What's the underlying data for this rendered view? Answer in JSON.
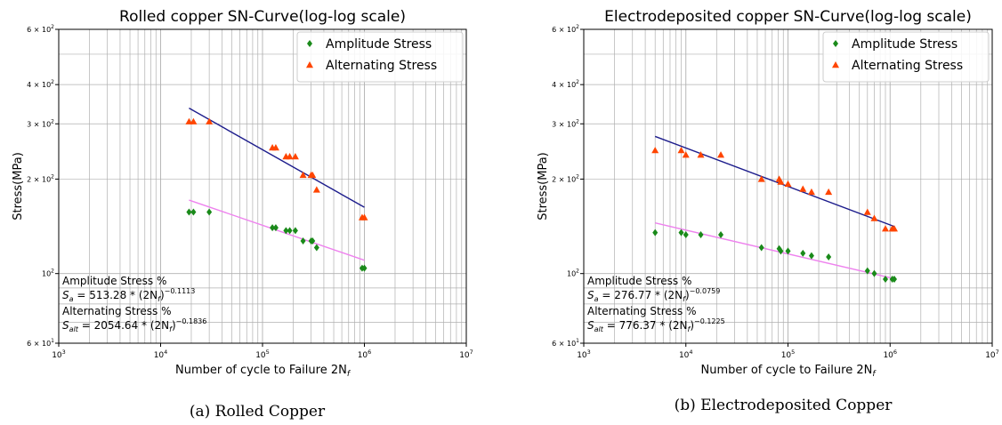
{
  "colors": {
    "amplitude_marker": "#1a8a1a",
    "alternating_marker": "#ff4500",
    "amplitude_fit": "#ee82ee",
    "alternating_fit": "#1c1c8c",
    "grid": "#b0b0b0",
    "axis": "#000000"
  },
  "chart_data": [
    {
      "type": "scatter",
      "title": "Rolled copper SN-Curve(log-log scale)",
      "xlabel": "Number of cycle to Failure 2N",
      "xlabel_sub": "f",
      "ylabel": "Stress(MPa)",
      "xscale": "log",
      "yscale": "log",
      "xlim": [
        1000,
        10000000
      ],
      "ylim": [
        60,
        600
      ],
      "grid": true,
      "legend_position": "top-right",
      "x_ticks": [
        {
          "value": 1000,
          "base": "10",
          "exp": "3"
        },
        {
          "value": 10000,
          "base": "10",
          "exp": "4"
        },
        {
          "value": 100000,
          "base": "10",
          "exp": "5"
        },
        {
          "value": 1000000,
          "base": "10",
          "exp": "6"
        },
        {
          "value": 10000000,
          "base": "10",
          "exp": "7"
        }
      ],
      "y_ticks": [
        {
          "value": 60,
          "mant": "6 × 10",
          "exp": "1",
          "major": false
        },
        {
          "value": 100,
          "mant": "10",
          "exp": "2",
          "major": true
        },
        {
          "value": 200,
          "mant": "2 × 10",
          "exp": "2",
          "major": false
        },
        {
          "value": 300,
          "mant": "3 × 10",
          "exp": "2",
          "major": false
        },
        {
          "value": 400,
          "mant": "4 × 10",
          "exp": "2",
          "major": false
        },
        {
          "value": 600,
          "mant": "6 × 10",
          "exp": "2",
          "major": false
        }
      ],
      "series": [
        {
          "name": "Amplitude Stress",
          "marker": "diamond",
          "points": [
            [
              19000,
              157
            ],
            [
              21000,
              157
            ],
            [
              30000,
              157
            ],
            [
              125000,
              140
            ],
            [
              135000,
              140
            ],
            [
              170000,
              137
            ],
            [
              185000,
              137
            ],
            [
              210000,
              137
            ],
            [
              250000,
              127
            ],
            [
              300000,
              127
            ],
            [
              310000,
              127
            ],
            [
              340000,
              121
            ],
            [
              950000,
              104
            ],
            [
              1000000,
              104
            ]
          ]
        },
        {
          "name": "Alternating Stress",
          "marker": "triangle",
          "points": [
            [
              19000,
              305
            ],
            [
              21000,
              305
            ],
            [
              30000,
              305
            ],
            [
              125000,
              252
            ],
            [
              135000,
              252
            ],
            [
              170000,
              236
            ],
            [
              185000,
              236
            ],
            [
              210000,
              236
            ],
            [
              250000,
              206
            ],
            [
              300000,
              206
            ],
            [
              310000,
              206
            ],
            [
              340000,
              185
            ],
            [
              950000,
              151
            ],
            [
              1000000,
              151
            ]
          ]
        }
      ],
      "fits": [
        {
          "series": "Amplitude Stress",
          "coef": 513.28,
          "exp": -0.1113,
          "x_range": [
            19000,
            1000000
          ]
        },
        {
          "series": "Alternating Stress",
          "coef": 2054.64,
          "exp": -0.1836,
          "x_range": [
            19000,
            1000000
          ]
        }
      ],
      "annotations": [
        {
          "label": "Amplitude Stress %",
          "symbol": "S",
          "sub": "a",
          "rhs": " = 513.28 * (2N",
          "rhs_sub": "f",
          "rhs_close": ")",
          "sup": "−0.1113"
        },
        {
          "label": "Alternating Stress %",
          "symbol": "S",
          "sub": "alt",
          "rhs": " = 2054.64 * (2N",
          "rhs_sub": "f",
          "rhs_close": ")",
          "sup": "−0.1836"
        }
      ]
    },
    {
      "type": "scatter",
      "title": "Electrodeposited copper SN-Curve(log-log scale)",
      "xlabel": "Number of cycle to Failure 2N",
      "xlabel_sub": "f",
      "ylabel": "Stress(MPa)",
      "xscale": "log",
      "yscale": "log",
      "xlim": [
        1000,
        10000000
      ],
      "ylim": [
        60,
        600
      ],
      "grid": true,
      "legend_position": "top-right",
      "x_ticks": [
        {
          "value": 1000,
          "base": "10",
          "exp": "3"
        },
        {
          "value": 10000,
          "base": "10",
          "exp": "4"
        },
        {
          "value": 100000,
          "base": "10",
          "exp": "5"
        },
        {
          "value": 1000000,
          "base": "10",
          "exp": "6"
        },
        {
          "value": 10000000,
          "base": "10",
          "exp": "7"
        }
      ],
      "y_ticks": [
        {
          "value": 60,
          "mant": "6 × 10",
          "exp": "1",
          "major": false
        },
        {
          "value": 100,
          "mant": "10",
          "exp": "2",
          "major": true
        },
        {
          "value": 200,
          "mant": "2 × 10",
          "exp": "2",
          "major": false
        },
        {
          "value": 300,
          "mant": "3 × 10",
          "exp": "2",
          "major": false
        },
        {
          "value": 400,
          "mant": "4 × 10",
          "exp": "2",
          "major": false
        },
        {
          "value": 600,
          "mant": "6 × 10",
          "exp": "2",
          "major": false
        }
      ],
      "series": [
        {
          "name": "Amplitude Stress",
          "marker": "diamond",
          "points": [
            [
              5000,
              135
            ],
            [
              9000,
              135
            ],
            [
              10000,
              133
            ],
            [
              14000,
              133
            ],
            [
              22000,
              133
            ],
            [
              55000,
              121
            ],
            [
              82000,
              120
            ],
            [
              85000,
              118
            ],
            [
              100000,
              118
            ],
            [
              140000,
              116
            ],
            [
              170000,
              114
            ],
            [
              250000,
              113
            ],
            [
              600000,
              102
            ],
            [
              700000,
              100
            ],
            [
              900000,
              96
            ],
            [
              1050000,
              96
            ],
            [
              1100000,
              96
            ]
          ]
        },
        {
          "name": "Alternating Stress",
          "marker": "triangle",
          "points": [
            [
              5000,
              247
            ],
            [
              9000,
              247
            ],
            [
              10000,
              239
            ],
            [
              14000,
              239
            ],
            [
              22000,
              239
            ],
            [
              55000,
              200
            ],
            [
              82000,
              200
            ],
            [
              85000,
              196
            ],
            [
              100000,
              193
            ],
            [
              140000,
              186
            ],
            [
              170000,
              182
            ],
            [
              250000,
              182
            ],
            [
              600000,
              157
            ],
            [
              700000,
              150
            ],
            [
              900000,
              139
            ],
            [
              1050000,
              139
            ],
            [
              1100000,
              139
            ]
          ]
        }
      ],
      "fits": [
        {
          "series": "Amplitude Stress",
          "coef": 276.77,
          "exp": -0.0759,
          "x_range": [
            5000,
            1100000
          ]
        },
        {
          "series": "Alternating Stress",
          "coef": 776.37,
          "exp": -0.1225,
          "x_range": [
            5000,
            1100000
          ]
        }
      ],
      "annotations": [
        {
          "label": "Amplitude Stress %",
          "symbol": "S",
          "sub": "a",
          "rhs": " = 276.77 * (2N",
          "rhs_sub": "f",
          "rhs_close": ")",
          "sup": "−0.0759"
        },
        {
          "label": "Alternating Stress %",
          "symbol": "S",
          "sub": "alt",
          "rhs": " = 776.37 * (2N",
          "rhs_sub": "f",
          "rhs_close": ")",
          "sup": "−0.1225"
        }
      ]
    }
  ],
  "captions": [
    "(a) Rolled Copper",
    "(b) Electrodeposited Copper"
  ]
}
